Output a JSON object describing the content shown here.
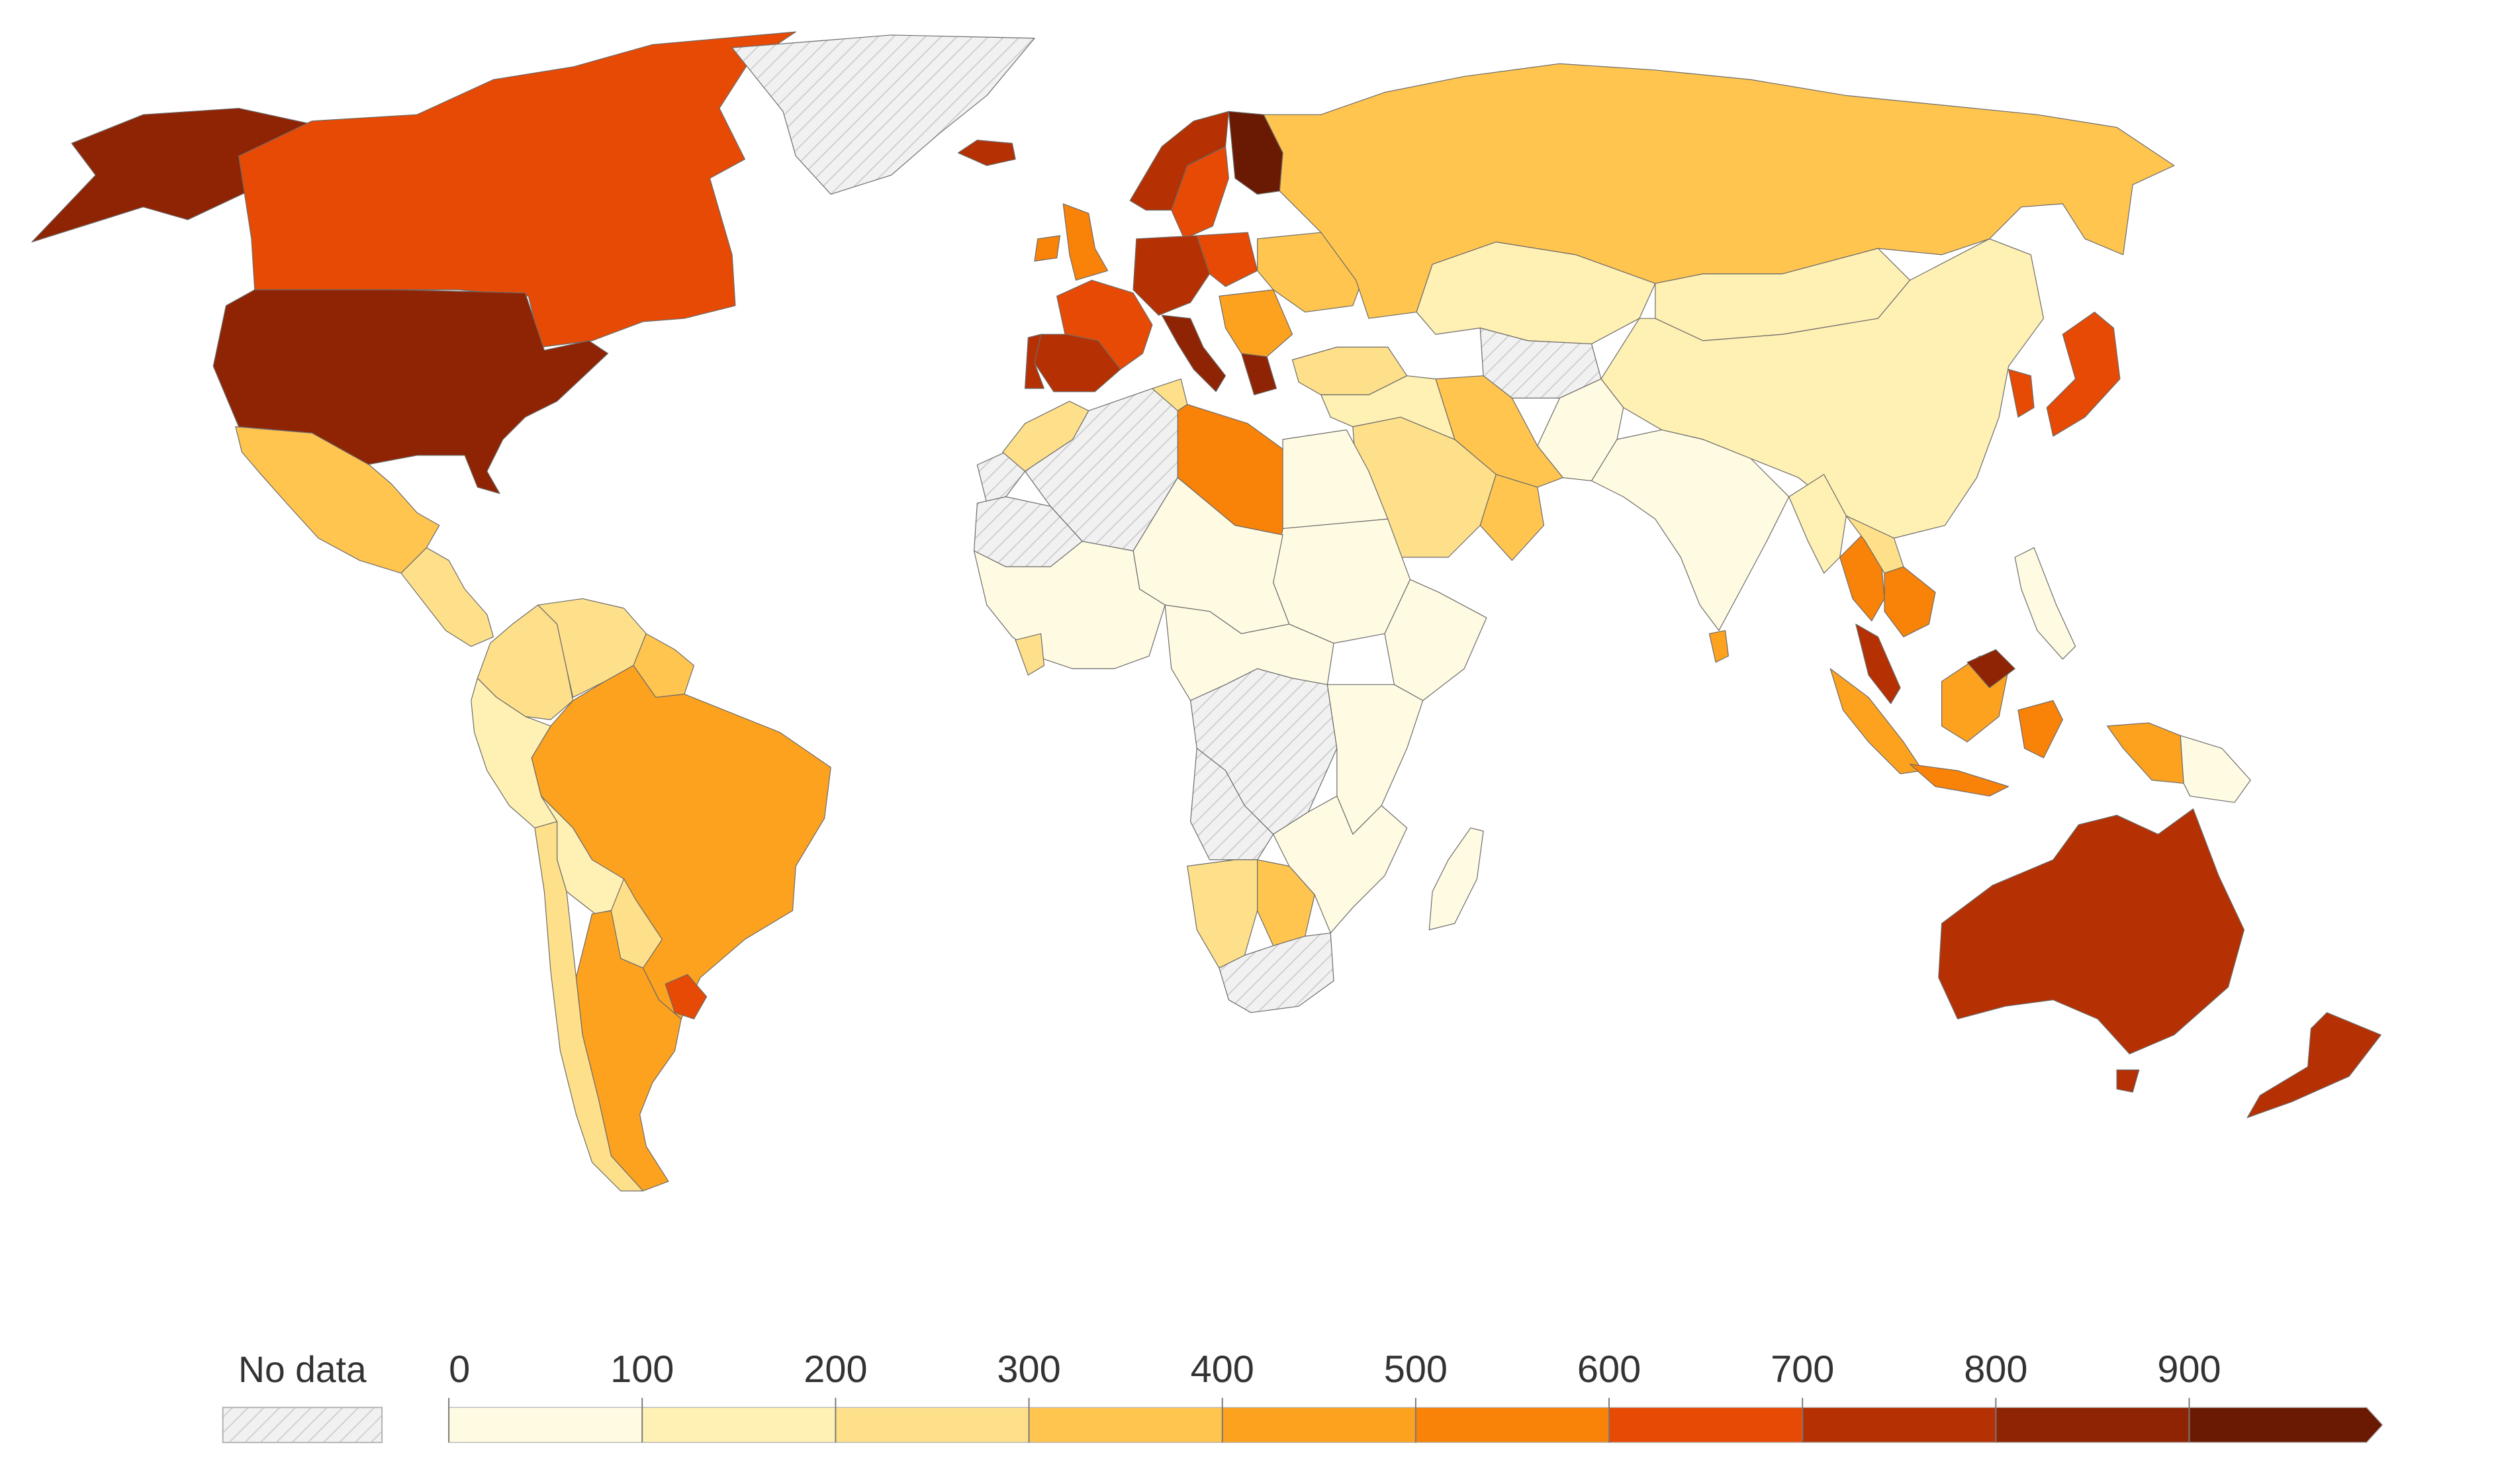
{
  "legend": {
    "no_data_label": "No data",
    "tick_labels": [
      "0",
      "100",
      "200",
      "300",
      "400",
      "500",
      "600",
      "700",
      "800",
      "900"
    ],
    "bins": [
      {
        "from": 0,
        "to": 100,
        "color": "#fffbe3"
      },
      {
        "from": 100,
        "to": 200,
        "color": "#fff0b3"
      },
      {
        "from": 200,
        "to": 300,
        "color": "#ffe08a"
      },
      {
        "from": 300,
        "to": 400,
        "color": "#ffc54f"
      },
      {
        "from": 400,
        "to": 500,
        "color": "#fda21f"
      },
      {
        "from": 500,
        "to": 600,
        "color": "#f98208"
      },
      {
        "from": 600,
        "to": 700,
        "color": "#e64a05"
      },
      {
        "from": 700,
        "to": 800,
        "color": "#b53103"
      },
      {
        "from": 800,
        "to": 900,
        "color": "#8f2404"
      },
      {
        "from": 900,
        "to": 1000,
        "color": "#6a1a02"
      }
    ],
    "open_ended_top": true
  },
  "colors": {
    "background": "#ffffff",
    "border": "#6b6b6b",
    "no_data_fill": "#f1f1f1",
    "no_data_hatch": "#cfcfcf"
  },
  "regions": [
    {
      "name": "Alaska",
      "bin": 8
    },
    {
      "name": "Canada",
      "bin": 6
    },
    {
      "name": "Greenland",
      "bin": -1
    },
    {
      "name": "United States",
      "bin": 8
    },
    {
      "name": "Mexico",
      "bin": 3
    },
    {
      "name": "Central America",
      "bin": 2
    },
    {
      "name": "Colombia",
      "bin": 2
    },
    {
      "name": "Venezuela",
      "bin": 2
    },
    {
      "name": "Guianas",
      "bin": 3
    },
    {
      "name": "Brazil",
      "bin": 4
    },
    {
      "name": "Peru",
      "bin": 1
    },
    {
      "name": "Bolivia",
      "bin": 1
    },
    {
      "name": "Paraguay",
      "bin": 2
    },
    {
      "name": "Argentina",
      "bin": 4
    },
    {
      "name": "Chile",
      "bin": 2
    },
    {
      "name": "Uruguay",
      "bin": 6
    },
    {
      "name": "Iceland",
      "bin": 7
    },
    {
      "name": "Norway",
      "bin": 7
    },
    {
      "name": "Sweden",
      "bin": 6
    },
    {
      "name": "Finland",
      "bin": 9
    },
    {
      "name": "United Kingdom",
      "bin": 5
    },
    {
      "name": "Ireland",
      "bin": 5
    },
    {
      "name": "France",
      "bin": 6
    },
    {
      "name": "Spain",
      "bin": 7
    },
    {
      "name": "Portugal",
      "bin": 7
    },
    {
      "name": "Germany",
      "bin": 7
    },
    {
      "name": "Poland",
      "bin": 6
    },
    {
      "name": "Italy",
      "bin": 8
    },
    {
      "name": "Greece",
      "bin": 8
    },
    {
      "name": "Balkans",
      "bin": 4
    },
    {
      "name": "Ukraine",
      "bin": 3
    },
    {
      "name": "Russia",
      "bin": 3
    },
    {
      "name": "Turkey",
      "bin": 2
    },
    {
      "name": "Kazakhstan",
      "bin": 1
    },
    {
      "name": "Central Asia",
      "bin": -1
    },
    {
      "name": "Mongolia",
      "bin": 1
    },
    {
      "name": "China",
      "bin": 1
    },
    {
      "name": "Korea",
      "bin": 6
    },
    {
      "name": "Japan",
      "bin": 6
    },
    {
      "name": "Iran",
      "bin": 3
    },
    {
      "name": "Afghanistan and Pakistan",
      "bin": 0
    },
    {
      "name": "India",
      "bin": 0
    },
    {
      "name": "Sri Lanka",
      "bin": 4
    },
    {
      "name": "Arabian Peninsula",
      "bin": 2
    },
    {
      "name": "Oman",
      "bin": 3
    },
    {
      "name": "Iraq and Levant",
      "bin": 1
    },
    {
      "name": "Myanmar",
      "bin": 1
    },
    {
      "name": "Thailand",
      "bin": 5
    },
    {
      "name": "Laos",
      "bin": 2
    },
    {
      "name": "Vietnam and Cambodia",
      "bin": 5
    },
    {
      "name": "Malaysia",
      "bin": 7
    },
    {
      "name": "Borneo",
      "bin": 4
    },
    {
      "name": "Sarawak",
      "bin": 8
    },
    {
      "name": "Sumatra",
      "bin": 4
    },
    {
      "name": "Java",
      "bin": 5
    },
    {
      "name": "Sulawesi",
      "bin": 5
    },
    {
      "name": "West Papua",
      "bin": 4
    },
    {
      "name": "Papua New Guinea",
      "bin": 0
    },
    {
      "name": "Philippines",
      "bin": 0
    },
    {
      "name": "Australia",
      "bin": 7
    },
    {
      "name": "Tasmania",
      "bin": 7
    },
    {
      "name": "New Zealand",
      "bin": 7
    },
    {
      "name": "Western Sahara",
      "bin": -1
    },
    {
      "name": "Morocco",
      "bin": 2
    },
    {
      "name": "Algeria",
      "bin": -1
    },
    {
      "name": "Tunisia",
      "bin": 2
    },
    {
      "name": "Libya",
      "bin": 5
    },
    {
      "name": "Egypt",
      "bin": 0
    },
    {
      "name": "Sudan",
      "bin": 0
    },
    {
      "name": "Sahel",
      "bin": 0
    },
    {
      "name": "Mauritania",
      "bin": -1
    },
    {
      "name": "West Africa",
      "bin": 0
    },
    {
      "name": "Ghana",
      "bin": 2
    },
    {
      "name": "Ethiopia and Horn",
      "bin": 0
    },
    {
      "name": "Central Africa",
      "bin": 0
    },
    {
      "name": "DR Congo",
      "bin": -1
    },
    {
      "name": "East Africa",
      "bin": 0
    },
    {
      "name": "Angola",
      "bin": -1
    },
    {
      "name": "Zambia and Mozambique",
      "bin": 0
    },
    {
      "name": "Namibia",
      "bin": 2
    },
    {
      "name": "Botswana",
      "bin": 3
    },
    {
      "name": "South Africa",
      "bin": -1
    },
    {
      "name": "Madagascar",
      "bin": 0
    }
  ]
}
